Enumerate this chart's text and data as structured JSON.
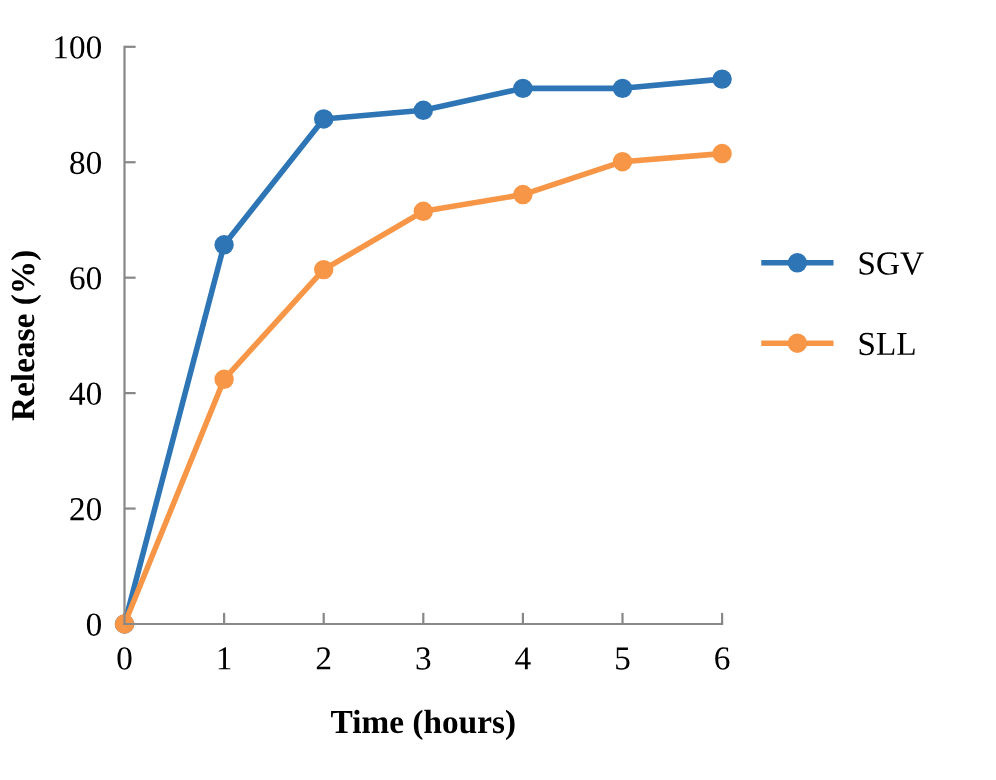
{
  "chart_data": {
    "type": "line",
    "xlabel": "Time (hours)",
    "ylabel": "Release (%)",
    "x": [
      0,
      1,
      2,
      3,
      4,
      5,
      6
    ],
    "series": [
      {
        "name": "SGV",
        "color": "#2e75b6",
        "values": [
          0,
          65.7,
          87.5,
          89,
          92.8,
          92.8,
          94.4
        ]
      },
      {
        "name": "SLL",
        "color": "#f79646",
        "values": [
          0,
          42.4,
          61.4,
          71.5,
          74.4,
          80.1,
          81.5
        ]
      }
    ],
    "xlim": [
      0,
      6
    ],
    "xticks": [
      0,
      1,
      2,
      3,
      4,
      5,
      6
    ],
    "ylim": [
      0,
      100
    ],
    "yticks": [
      0,
      20,
      40,
      60,
      80,
      100
    ],
    "grid": false,
    "legend": "right",
    "marker": "circle",
    "line_style": "solid"
  }
}
